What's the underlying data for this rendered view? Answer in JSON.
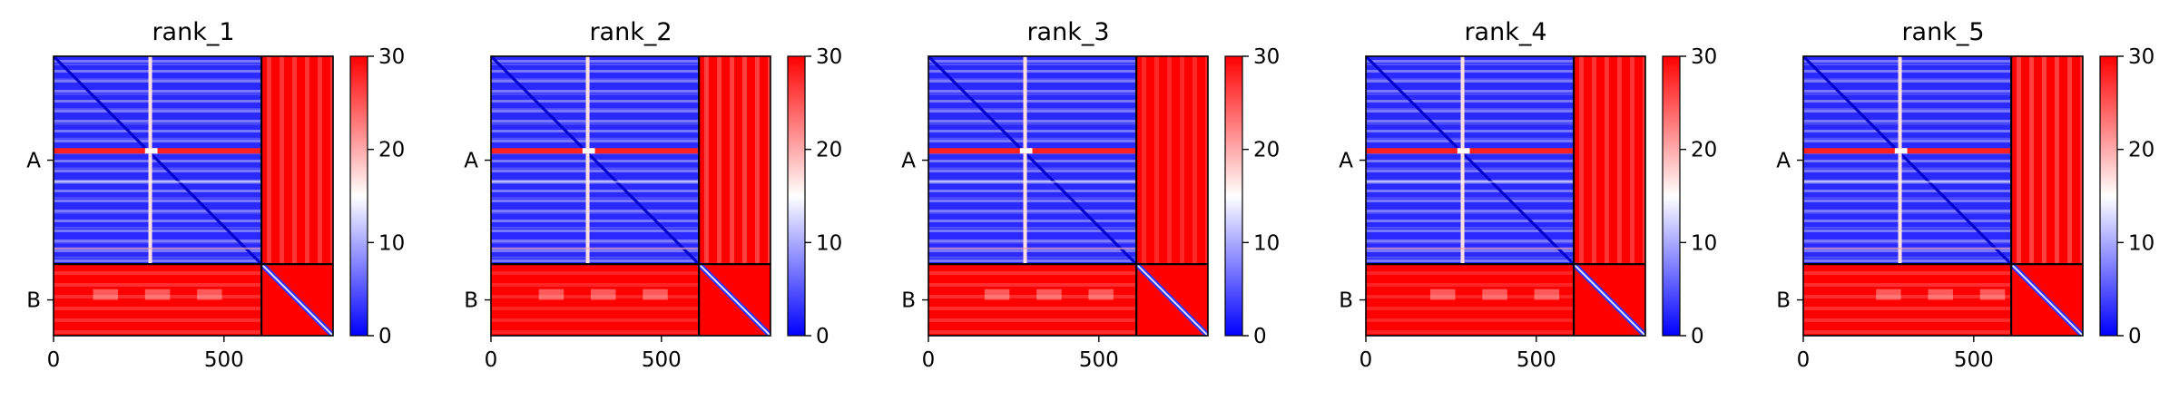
{
  "chart_data": {
    "type": "heatmap",
    "panels": [
      {
        "title": "rank_1",
        "variant": 1
      },
      {
        "title": "rank_2",
        "variant": 2
      },
      {
        "title": "rank_3",
        "variant": 3
      },
      {
        "title": "rank_4",
        "variant": 4
      },
      {
        "title": "rank_5",
        "variant": 5
      }
    ],
    "chains": [
      {
        "label": "A",
        "start": 0,
        "end": 610
      },
      {
        "label": "B",
        "start": 610,
        "end": 820
      }
    ],
    "x_range": [
      0,
      820
    ],
    "x_ticks": [
      0,
      500
    ],
    "x_tick_labels": [
      "0",
      "500"
    ],
    "colorbar": {
      "range": [
        0,
        30
      ],
      "ticks": [
        0,
        10,
        20,
        30
      ],
      "tick_labels": [
        "0",
        "10",
        "20",
        "30"
      ],
      "colors": [
        "#0000ff",
        "#ffffff",
        "#ff0000"
      ]
    },
    "grid": false
  }
}
